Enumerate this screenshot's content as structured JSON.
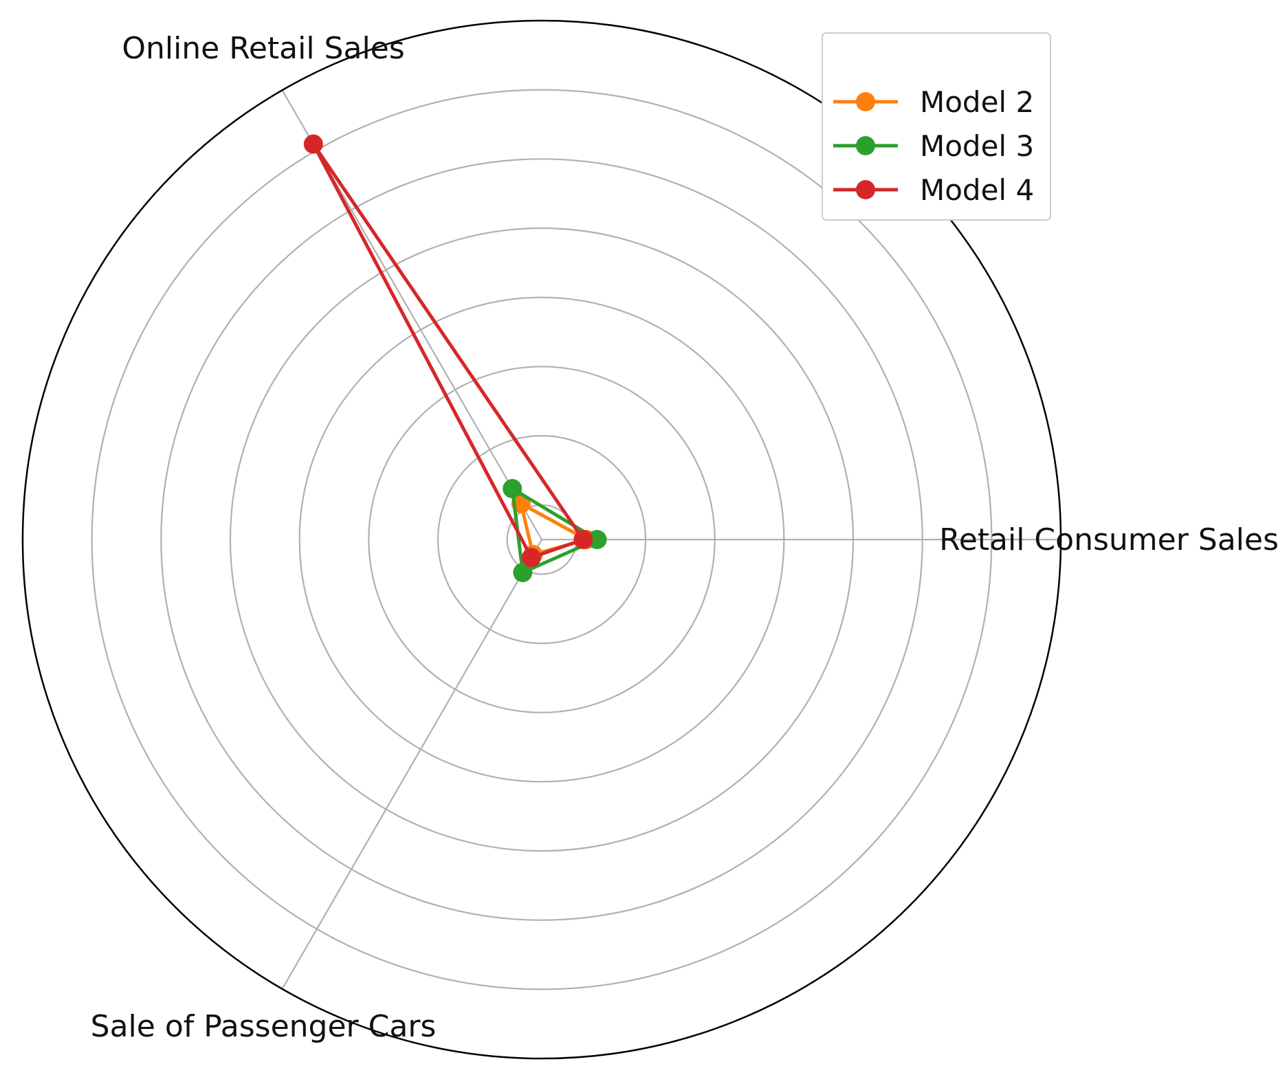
{
  "chart_data": {
    "type": "radar",
    "categories": [
      "Retail Consumer Sales",
      "Online Retail Sales",
      "Sale of Passenger Cars"
    ],
    "series": [
      {
        "name": "Model 2",
        "color": "#ff7f0e",
        "values": [
          0.65,
          0.6,
          0.25
        ]
      },
      {
        "name": "Model 3",
        "color": "#2ca02c",
        "values": [
          0.8,
          0.85,
          0.55
        ]
      },
      {
        "name": "Model 4",
        "color": "#d62728",
        "values": [
          0.6,
          6.6,
          0.3
        ]
      }
    ],
    "r_gridlines": [
      0.5,
      1.5,
      2.5,
      3.5,
      4.5,
      5.5,
      6.5
    ],
    "rlim": [
      0,
      7.5
    ],
    "radial_tick_labels_shown": false,
    "grid": true,
    "legend_position": "top-right"
  }
}
